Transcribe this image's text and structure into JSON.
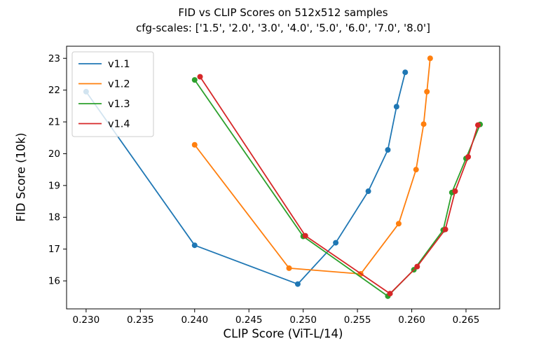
{
  "figure": {
    "background": "#ffffff",
    "axis_color": "#000000"
  },
  "chart_data": {
    "type": "line",
    "title": "FID vs CLIP Scores on 512x512 samples",
    "subtitle": "cfg-scales: ['1.5', '2.0', '3.0', '4.0', '5.0', '6.0', '7.0', '8.0']",
    "xlabel": "CLIP Score (ViT-L/14)",
    "ylabel": "FID Score (10k)",
    "cfg_scales": [
      "1.5",
      "2.0",
      "3.0",
      "4.0",
      "5.0",
      "6.0",
      "7.0",
      "8.0"
    ],
    "xlim": [
      0.2282,
      0.2681
    ],
    "ylim": [
      15.12,
      23.38
    ],
    "x_ticks": [
      0.23,
      0.235,
      0.24,
      0.245,
      0.25,
      0.255,
      0.26,
      0.265
    ],
    "y_ticks": [
      16,
      17,
      18,
      19,
      20,
      21,
      22,
      23
    ],
    "grid": false,
    "legend_position": "upper left",
    "series": [
      {
        "name": "v1.1",
        "color": "#1f77b4",
        "x": [
          0.23,
          0.24,
          0.2495,
          0.253,
          0.256,
          0.2578,
          0.2586,
          0.2594
        ],
        "y": [
          21.95,
          17.12,
          15.9,
          17.2,
          18.82,
          20.12,
          21.48,
          22.56
        ]
      },
      {
        "name": "v1.2",
        "color": "#ff7f0e",
        "x": [
          0.24,
          0.2487,
          0.2553,
          0.2588,
          0.2604,
          0.2611,
          0.2614,
          0.2617
        ],
        "y": [
          20.28,
          16.4,
          16.22,
          17.8,
          19.5,
          20.93,
          21.95,
          23.0
        ]
      },
      {
        "name": "v1.3",
        "color": "#2ca02c",
        "x": [
          0.24,
          0.25,
          0.2578,
          0.2602,
          0.2629,
          0.2637,
          0.265,
          0.2663
        ],
        "y": [
          22.32,
          17.4,
          15.52,
          16.35,
          17.6,
          18.78,
          19.85,
          20.92
        ]
      },
      {
        "name": "v1.4",
        "color": "#d62728",
        "x": [
          0.2405,
          0.2502,
          0.258,
          0.2605,
          0.2631,
          0.264,
          0.2652,
          0.2661
        ],
        "y": [
          22.42,
          17.42,
          15.6,
          16.45,
          17.62,
          18.82,
          19.9,
          20.9
        ]
      }
    ]
  }
}
